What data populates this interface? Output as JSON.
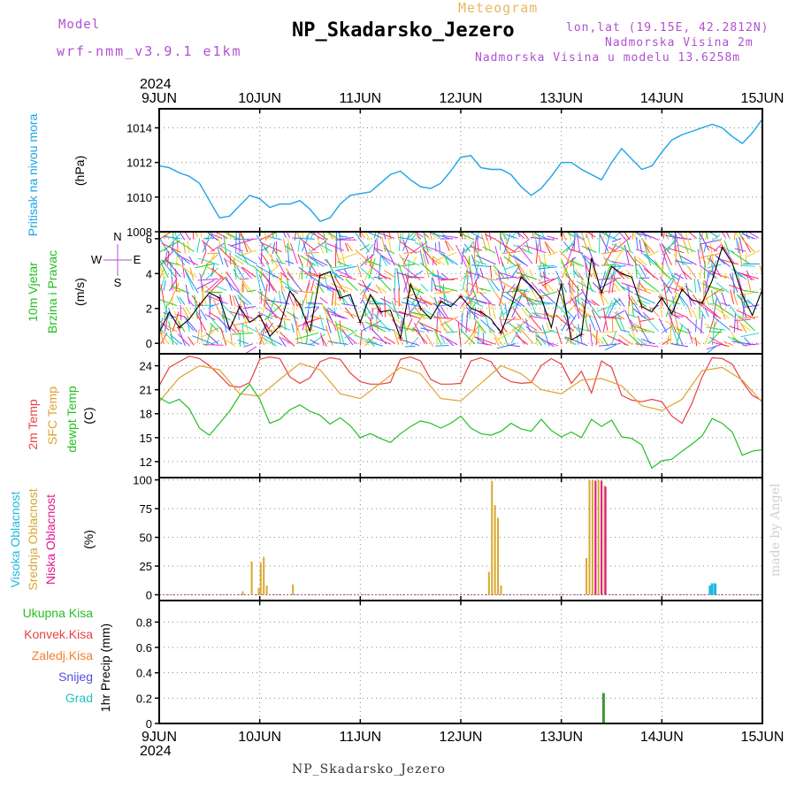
{
  "header": {
    "model_label": "Model",
    "model_value": "wrf-nmm_v3.9.1  e1km",
    "meteogram_label": "Meteogram",
    "station_title": "NP_Skadarsko_Jezero",
    "coords": "lon,lat (19.15E, 42.2812N)",
    "elevation": "Nadmorska Visina 2m",
    "model_elevation": "Nadmorska Visina u modelu 13.6258m"
  },
  "footer": {
    "station": "NP_Skadarsko_Jezero"
  },
  "watermark": "made by Angel",
  "colors": {
    "pressure": "#1ca3e8",
    "wind_label": "#22c022",
    "temp2m": "#e84040",
    "sfc": "#e0a030",
    "dewpt": "#22c022",
    "cloud_high": "#20b8e0",
    "cloud_mid": "#d8a830",
    "cloud_low": "#e01890",
    "precip_total": "#22c022",
    "precip_conv": "#e84040",
    "precip_frz": "#f08030",
    "snow": "#5050e0",
    "grad": "#20c0c0",
    "wind_axis": "#b050d0"
  },
  "chart_data": [
    {
      "id": "pressure",
      "type": "line",
      "ylabel": [
        "Pritisak na nivou mora",
        "(hPa)"
      ],
      "ylim": [
        1008,
        1015.1
      ],
      "yticks": [
        1008,
        1010,
        1012,
        1014
      ],
      "grid": true,
      "xaxis": {
        "start": "2024-06-09T00",
        "end": "2024-06-15T00",
        "ticks": [
          "9JUN",
          "10JUN",
          "11JUN",
          "12JUN",
          "13JUN",
          "14JUN",
          "15JUN"
        ],
        "year": "2024"
      },
      "series": [
        {
          "x_days": [
            0,
            0.1,
            0.2,
            0.3,
            0.4,
            0.5,
            0.6,
            0.7,
            0.8,
            0.9,
            1.0,
            1.1,
            1.2,
            1.3,
            1.4,
            1.5,
            1.6,
            1.7,
            1.8,
            1.9,
            2.0,
            2.1,
            2.2,
            2.3,
            2.4,
            2.5,
            2.6,
            2.7,
            2.8,
            2.9,
            3.0,
            3.1,
            3.2,
            3.3,
            3.4,
            3.5,
            3.6,
            3.7,
            3.8,
            3.9,
            4.0,
            4.1,
            4.2,
            4.3,
            4.4,
            4.5,
            4.6,
            4.7,
            4.8,
            4.9,
            5.0,
            5.1,
            5.2,
            5.3,
            5.4,
            5.5,
            5.6,
            5.7,
            5.8,
            5.9,
            6.0
          ],
          "values": [
            1011.8,
            1011.7,
            1011.4,
            1011.2,
            1010.8,
            1009.8,
            1008.8,
            1008.9,
            1009.5,
            1010.1,
            1009.9,
            1009.4,
            1009.6,
            1009.6,
            1009.8,
            1009.3,
            1008.6,
            1008.8,
            1009.6,
            1010.1,
            1010.2,
            1010.3,
            1010.8,
            1011.3,
            1011.5,
            1011.0,
            1010.6,
            1010.5,
            1010.8,
            1011.5,
            1012.3,
            1012.4,
            1011.7,
            1011.6,
            1011.6,
            1011.3,
            1010.6,
            1010.1,
            1010.5,
            1011.2,
            1012.0,
            1012.0,
            1011.6,
            1011.3,
            1011.0,
            1012.0,
            1012.8,
            1012.2,
            1011.6,
            1011.8,
            1012.6,
            1013.3,
            1013.6,
            1013.8,
            1014.0,
            1014.2,
            1014.0,
            1013.5,
            1013.1,
            1013.7,
            1014.5
          ]
        }
      ]
    },
    {
      "id": "wind",
      "type": "line",
      "ylabel": [
        "10m Vjetar",
        "Brzina i Pravac",
        "(m/s)"
      ],
      "ylim": [
        -0.6,
        6.4
      ],
      "yticks": [
        0,
        2,
        4,
        6
      ],
      "compass": [
        "N",
        "E",
        "S",
        "W"
      ],
      "series": [
        {
          "x_days": [
            0,
            0.1,
            0.2,
            0.3,
            0.4,
            0.5,
            0.6,
            0.7,
            0.8,
            0.9,
            1.0,
            1.1,
            1.2,
            1.3,
            1.4,
            1.5,
            1.6,
            1.7,
            1.8,
            1.9,
            2.0,
            2.1,
            2.2,
            2.3,
            2.4,
            2.5,
            2.6,
            2.7,
            2.8,
            2.9,
            3.0,
            3.1,
            3.2,
            3.3,
            3.4,
            3.5,
            3.6,
            3.7,
            3.8,
            3.9,
            4.0,
            4.1,
            4.2,
            4.3,
            4.4,
            4.5,
            4.6,
            4.7,
            4.8,
            4.9,
            5.0,
            5.1,
            5.2,
            5.3,
            5.4,
            5.5,
            5.6,
            5.7,
            5.8,
            5.9,
            6.0
          ],
          "values": [
            0.6,
            1.8,
            0.9,
            1.4,
            2.2,
            2.9,
            2.6,
            0.8,
            2.1,
            1.2,
            1.6,
            0.4,
            1.0,
            3.0,
            2.2,
            0.7,
            3.9,
            4.1,
            2.6,
            2.8,
            1.2,
            2.8,
            1.8,
            1.9,
            0.3,
            3.4,
            2.0,
            1.4,
            2.4,
            2.1,
            2.7,
            2.0,
            1.8,
            1.4,
            0.6,
            2.1,
            3.8,
            3.3,
            2.6,
            0.9,
            3.4,
            0.2,
            0.5,
            4.9,
            2.9,
            4.4,
            4.0,
            3.8,
            2.1,
            1.8,
            2.6,
            1.7,
            3.1,
            2.5,
            2.3,
            3.6,
            5.5,
            4.6,
            2.8,
            1.6,
            3.1
          ]
        }
      ]
    },
    {
      "id": "temperature",
      "type": "line",
      "ylabel": [
        "2m Temp",
        "SFC Temp",
        "dewpt Temp",
        "(C)"
      ],
      "ylim": [
        10,
        25.5
      ],
      "yticks": [
        12,
        15,
        18,
        21,
        24
      ],
      "series": [
        {
          "name": "2m Temp",
          "x_days": [
            0,
            0.1,
            0.2,
            0.3,
            0.4,
            0.5,
            0.6,
            0.7,
            0.8,
            0.9,
            1.0,
            1.1,
            1.2,
            1.3,
            1.4,
            1.5,
            1.6,
            1.7,
            1.8,
            1.9,
            2.0,
            2.1,
            2.2,
            2.3,
            2.4,
            2.5,
            2.6,
            2.7,
            2.8,
            2.9,
            3.0,
            3.1,
            3.2,
            3.3,
            3.4,
            3.5,
            3.6,
            3.7,
            3.8,
            3.9,
            4.0,
            4.1,
            4.2,
            4.3,
            4.4,
            4.5,
            4.6,
            4.7,
            4.8,
            4.9,
            5.0,
            5.1,
            5.2,
            5.3,
            5.4,
            5.5,
            5.6,
            5.7,
            5.8,
            5.9,
            6.0
          ],
          "values": [
            21.5,
            23.8,
            24.5,
            25.2,
            24.9,
            24.0,
            22.8,
            21.5,
            21.3,
            21.9,
            24.8,
            25.1,
            24.9,
            22.6,
            21.8,
            22.5,
            24.5,
            25.0,
            24.8,
            23.1,
            22.0,
            21.7,
            21.7,
            21.9,
            24.8,
            25.1,
            24.6,
            22.3,
            21.7,
            21.7,
            21.8,
            24.6,
            25.0,
            24.5,
            22.7,
            22.0,
            21.8,
            21.9,
            24.0,
            24.9,
            24.2,
            21.8,
            23.3,
            20.6,
            24.6,
            23.8,
            20.3,
            19.7,
            19.5,
            19.8,
            19.5,
            17.7,
            16.8,
            19.3,
            22.6,
            25.0,
            24.9,
            24.2,
            22.0,
            20.3,
            19.6
          ]
        },
        {
          "name": "SFC Temp",
          "x_days": [
            0,
            0.2,
            0.4,
            0.6,
            0.8,
            1.0,
            1.2,
            1.4,
            1.6,
            1.8,
            2.0,
            2.2,
            2.4,
            2.6,
            2.8,
            3.0,
            3.2,
            3.4,
            3.6,
            3.8,
            4.0,
            4.2,
            4.4,
            4.6,
            4.8,
            5.0,
            5.2,
            5.4,
            5.6,
            5.8,
            6.0
          ],
          "values": [
            19.5,
            22.5,
            24.0,
            23.5,
            20.5,
            20.2,
            22.3,
            24.3,
            23.5,
            20.5,
            19.9,
            21.8,
            23.8,
            23.0,
            19.9,
            19.6,
            21.8,
            24.0,
            23.0,
            21.0,
            20.5,
            22.2,
            22.4,
            21.5,
            19.0,
            18.4,
            19.8,
            23.4,
            23.8,
            22.2,
            19.4
          ]
        },
        {
          "name": "dewpt Temp",
          "x_days": [
            0,
            0.1,
            0.2,
            0.3,
            0.4,
            0.5,
            0.6,
            0.7,
            0.8,
            0.9,
            1.0,
            1.1,
            1.2,
            1.3,
            1.4,
            1.5,
            1.6,
            1.7,
            1.8,
            1.9,
            2.0,
            2.1,
            2.2,
            2.3,
            2.4,
            2.5,
            2.6,
            2.7,
            2.8,
            2.9,
            3.0,
            3.1,
            3.2,
            3.3,
            3.4,
            3.5,
            3.6,
            3.7,
            3.8,
            3.9,
            4.0,
            4.1,
            4.2,
            4.3,
            4.4,
            4.5,
            4.6,
            4.7,
            4.8,
            4.9,
            5.0,
            5.1,
            5.2,
            5.3,
            5.4,
            5.5,
            5.6,
            5.7,
            5.8,
            5.9,
            6.0
          ],
          "values": [
            20.0,
            19.3,
            19.8,
            18.6,
            16.2,
            15.3,
            16.8,
            18.3,
            20.3,
            21.7,
            19.8,
            16.8,
            17.3,
            18.5,
            19.1,
            18.3,
            17.8,
            16.7,
            17.5,
            16.5,
            15.0,
            15.5,
            14.9,
            14.4,
            15.5,
            16.4,
            17.1,
            16.8,
            16.2,
            16.8,
            17.7,
            16.2,
            15.5,
            15.3,
            15.8,
            16.8,
            16.1,
            15.8,
            17.3,
            15.9,
            15.1,
            15.7,
            15.0,
            17.3,
            16.4,
            17.2,
            15.1,
            14.9,
            14.1,
            11.2,
            12.1,
            12.3,
            13.3,
            14.2,
            15.2,
            17.4,
            16.8,
            15.7,
            12.8,
            13.3,
            13.5
          ]
        }
      ]
    },
    {
      "id": "clouds",
      "type": "bar",
      "ylabel": [
        "Visoka Oblacnost",
        "Srednja Oblacnost",
        "Niska Oblacnost",
        "(%)"
      ],
      "ylim": [
        -5,
        102
      ],
      "yticks": [
        0,
        25,
        50,
        75,
        100
      ],
      "series": [
        {
          "name": "Visoka Oblacnost",
          "x_days": [
            5.48,
            5.5,
            5.53
          ],
          "values": [
            8,
            10,
            10
          ]
        },
        {
          "name": "Srednja Oblacnost",
          "x_days": [
            0.83,
            0.92,
            0.99,
            1.01,
            1.04,
            1.07,
            1.33,
            3.28,
            3.31,
            3.34,
            3.37,
            3.4,
            4.25,
            4.28,
            4.31,
            4.34,
            4.37,
            4.4,
            4.43
          ],
          "values": [
            3,
            29,
            6,
            28,
            33,
            8,
            9,
            20,
            99,
            78,
            67,
            8,
            32,
            100,
            100,
            100,
            100,
            100,
            95
          ]
        },
        {
          "name": "Niska Oblacnost",
          "x_days": [
            4.34,
            4.4,
            4.44
          ],
          "values": [
            99,
            99,
            94
          ]
        }
      ]
    },
    {
      "id": "precip",
      "type": "bar",
      "ylabel": [
        "1hr Precip (mm)"
      ],
      "ylim": [
        0,
        0.97
      ],
      "yticks": [
        0,
        0.2,
        0.4,
        0.6,
        0.8
      ],
      "legend": [
        "Ukupna Kisa",
        "Konvek.Kisa",
        "Zaledj.Kisa",
        "Snijeg",
        "Grad"
      ],
      "series": [
        {
          "name": "Ukupna Kisa",
          "x_days": [
            4.42
          ],
          "values": [
            0.24
          ]
        }
      ]
    }
  ]
}
